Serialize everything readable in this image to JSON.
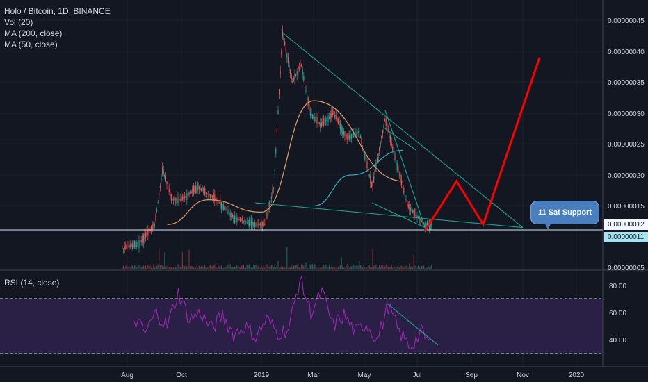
{
  "legend": {
    "title": "Holo / Bitcoin, 1D, BINANCE",
    "indicators": [
      "Vol (20)",
      "MA (200, close)",
      "MA (50, close)"
    ],
    "rsi_label": "RSI (14, close)"
  },
  "annotations": {
    "callout": "11 Sat Support",
    "current_price": "0.00000012",
    "support_price": "0.00000011"
  },
  "colors": {
    "background": "#131722",
    "candle_up": "#26a69a",
    "candle_down": "#ef5350",
    "ma200": "#3aa6b9",
    "ma50": "#d59565",
    "rsi": "#9c27b0",
    "rsi_band": "#2a1f44",
    "trendline": "#1f9a8a",
    "projection": "#ff0000",
    "support": "#cfe8ff"
  },
  "chart_data": [
    {
      "type": "candlestick",
      "title": "Holo / Bitcoin, 1D, BINANCE",
      "x_ticks": [
        "Aug",
        "Oct",
        "2019",
        "Mar",
        "May",
        "Jul",
        "Sep",
        "Nov",
        "2020"
      ],
      "y_ticks": [
        "0.00000045",
        "0.00000040",
        "0.00000035",
        "0.00000030",
        "0.00000025",
        "0.00000020",
        "0.00000015",
        "0.00000011",
        "0.00000005"
      ],
      "ylim": [
        5e-08,
        4.7e-07
      ],
      "support_level": 1.1e-07,
      "current_price": 1.2e-07,
      "price_path_sketch": [
        [
          "2018-07-15",
          1.5e-07
        ],
        [
          "2018-07-25",
          8e-08
        ],
        [
          "2018-08-15",
          9e-08
        ],
        [
          "2018-09-01",
          1.2e-07
        ],
        [
          "2018-09-10",
          2.1e-07
        ],
        [
          "2018-09-20",
          1.6e-07
        ],
        [
          "2018-10-01",
          1.6e-07
        ],
        [
          "2018-10-20",
          1.8e-07
        ],
        [
          "2018-11-10",
          1.6e-07
        ],
        [
          "2018-12-01",
          1.3e-07
        ],
        [
          "2018-12-25",
          1.2e-07
        ],
        [
          "2019-01-05",
          1.2e-07
        ],
        [
          "2019-01-15",
          1.8e-07
        ],
        [
          "2019-01-25",
          4.3e-07
        ],
        [
          "2019-02-05",
          3.5e-07
        ],
        [
          "2019-02-15",
          3.8e-07
        ],
        [
          "2019-02-25",
          3e-07
        ],
        [
          "2019-03-10",
          2.8e-07
        ],
        [
          "2019-03-25",
          3e-07
        ],
        [
          "2019-04-10",
          2.6e-07
        ],
        [
          "2019-04-25",
          2.7e-07
        ],
        [
          "2019-05-10",
          1.8e-07
        ],
        [
          "2019-05-25",
          2.9e-07
        ],
        [
          "2019-06-05",
          2.3e-07
        ],
        [
          "2019-06-20",
          1.5e-07
        ],
        [
          "2019-07-10",
          1.2e-07
        ]
      ],
      "ma200": [
        [
          "2019-03-01",
          1.5e-07
        ],
        [
          "2019-04-15",
          2e-07
        ],
        [
          "2019-06-15",
          2.4e-07
        ]
      ],
      "ma50": [
        [
          "2018-09-15",
          1.2e-07
        ],
        [
          "2018-11-01",
          1.6e-07
        ],
        [
          "2019-01-01",
          1.4e-07
        ],
        [
          "2019-03-01",
          3.2e-07
        ],
        [
          "2019-06-15",
          1.9e-07
        ]
      ],
      "projection": [
        [
          "2019-07-10",
          1.1e-07
        ],
        [
          "2019-08-15",
          1.9e-07
        ],
        [
          "2019-09-15",
          1.2e-07
        ],
        [
          "2019-11-20",
          3.9e-07
        ]
      ],
      "volume": {
        "name": "Vol (20)"
      }
    },
    {
      "type": "line",
      "title": "RSI (14, close)",
      "y_ticks": [
        "80.00",
        "60.00",
        "40.00"
      ],
      "ylim": [
        25,
        92
      ],
      "band": [
        30,
        70
      ],
      "series": [
        {
          "name": "RSI (14, close)",
          "values": [
            55,
            45,
            60,
            50,
            75,
            55,
            60,
            48,
            58,
            44,
            50,
            42,
            55,
            45,
            48,
            85,
            60,
            75,
            50,
            58,
            45,
            52,
            40,
            65,
            45,
            35,
            45,
            35
          ]
        }
      ]
    }
  ]
}
